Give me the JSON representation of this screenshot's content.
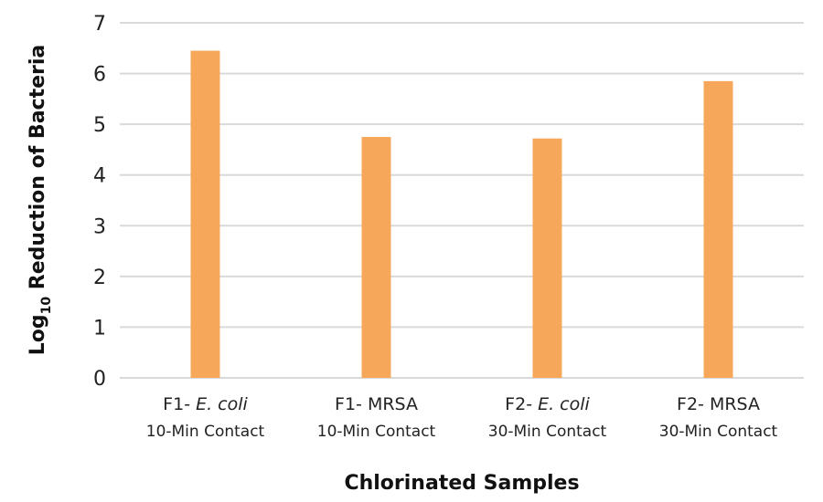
{
  "chart_data": {
    "type": "bar",
    "title": "",
    "xlabel": "Chlorinated Samples",
    "ylabel": {
      "prefix": "Log",
      "subscript": "10",
      "suffix": " Reduction of Bacteria"
    },
    "ylim": [
      0,
      7
    ],
    "yticks": [
      "0",
      "1",
      "2",
      "3",
      "4",
      "5",
      "6",
      "7"
    ],
    "grid": true,
    "legend": "none",
    "bar_color": "#F7A75A",
    "grid_color": "#D9D9D9",
    "categories": [
      {
        "line1_prefix": "F1- ",
        "line1_italic": "E. coli",
        "line2": "10-Min Contact"
      },
      {
        "line1_prefix": "F1- ",
        "line1_italic": "MRSA",
        "line1_italic_flag": false,
        "line2": "10-Min Contact"
      },
      {
        "line1_prefix": "F2- ",
        "line1_italic": "E. coli",
        "line2": "30-Min Contact"
      },
      {
        "line1_prefix": "F2- ",
        "line1_italic": "MRSA",
        "line1_italic_flag": false,
        "line2": "30-Min Contact"
      }
    ],
    "values": [
      6.45,
      4.75,
      4.72,
      5.85
    ]
  }
}
